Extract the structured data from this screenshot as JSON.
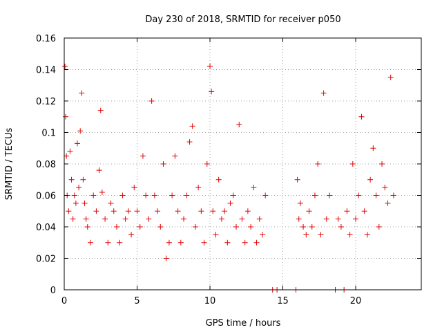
{
  "chart_data": {
    "type": "scatter",
    "title": "Day 230 of 2018, SRMTID for receiver p050",
    "xlabel": "GPS time / hours",
    "ylabel": "SRMTID / TECUs",
    "xlim": [
      0,
      24.5
    ],
    "ylim": [
      0,
      0.16
    ],
    "xticks": [
      0,
      5,
      10,
      15,
      20
    ],
    "xtick_labels": [
      "0",
      "5",
      "10",
      "15",
      "20"
    ],
    "yticks": [
      0,
      0.02,
      0.04,
      0.06,
      0.08,
      0.1,
      0.12,
      0.14,
      0.16
    ],
    "ytick_labels": [
      "0",
      "0.02",
      "0.04",
      "0.06",
      "0.08",
      "0.1",
      "0.12",
      "0.14",
      "0.16"
    ],
    "grid": true,
    "marker": "+",
    "series": [
      {
        "name": "SRMTID",
        "color": "#e00000",
        "x": [
          0.05,
          0.1,
          0.15,
          0.2,
          0.3,
          0.4,
          0.5,
          0.6,
          0.7,
          0.8,
          0.9,
          1.0,
          1.1,
          1.2,
          1.3,
          1.4,
          1.5,
          1.6,
          1.8,
          2.0,
          2.2,
          2.4,
          2.5,
          2.6,
          2.8,
          3.0,
          3.2,
          3.4,
          3.6,
          3.8,
          4.0,
          4.2,
          4.4,
          4.6,
          4.8,
          5.0,
          5.2,
          5.4,
          5.6,
          5.8,
          6.0,
          6.2,
          6.4,
          6.6,
          6.8,
          7.0,
          7.2,
          7.4,
          7.6,
          7.8,
          8.0,
          8.2,
          8.4,
          8.6,
          8.8,
          9.0,
          9.2,
          9.4,
          9.6,
          9.8,
          10.0,
          10.1,
          10.2,
          10.4,
          10.6,
          10.8,
          11.0,
          11.2,
          11.4,
          11.6,
          11.8,
          12.0,
          12.2,
          12.4,
          12.6,
          12.8,
          13.0,
          13.2,
          13.4,
          13.6,
          13.8,
          14.3,
          14.6,
          15.9,
          16.0,
          16.1,
          16.2,
          16.4,
          16.6,
          16.8,
          17.0,
          17.2,
          17.4,
          17.6,
          17.8,
          18.0,
          18.2,
          18.6,
          18.8,
          19.0,
          19.2,
          19.4,
          19.6,
          19.8,
          20.0,
          20.2,
          20.4,
          20.6,
          20.8,
          21.0,
          21.2,
          21.4,
          21.6,
          21.8,
          22.0,
          22.2,
          22.4,
          22.6
        ],
        "y": [
          0.142,
          0.11,
          0.085,
          0.06,
          0.05,
          0.088,
          0.07,
          0.045,
          0.06,
          0.055,
          0.093,
          0.065,
          0.101,
          0.125,
          0.07,
          0.055,
          0.045,
          0.04,
          0.03,
          0.06,
          0.05,
          0.076,
          0.114,
          0.062,
          0.045,
          0.03,
          0.055,
          0.05,
          0.04,
          0.03,
          0.06,
          0.045,
          0.05,
          0.035,
          0.065,
          0.05,
          0.04,
          0.085,
          0.06,
          0.045,
          0.12,
          0.06,
          0.05,
          0.04,
          0.08,
          0.02,
          0.03,
          0.06,
          0.085,
          0.05,
          0.03,
          0.045,
          0.06,
          0.094,
          0.104,
          0.04,
          0.065,
          0.05,
          0.03,
          0.08,
          0.142,
          0.126,
          0.05,
          0.035,
          0.07,
          0.045,
          0.05,
          0.03,
          0.055,
          0.06,
          0.04,
          0.105,
          0.045,
          0.03,
          0.05,
          0.04,
          0.065,
          0.03,
          0.045,
          0.035,
          0.06,
          0.0,
          0.0,
          0.0,
          0.07,
          0.045,
          0.055,
          0.04,
          0.035,
          0.05,
          0.04,
          0.06,
          0.08,
          0.035,
          0.125,
          0.045,
          0.06,
          0.0,
          0.045,
          0.04,
          0.0,
          0.05,
          0.035,
          0.08,
          0.045,
          0.06,
          0.11,
          0.05,
          0.035,
          0.07,
          0.09,
          0.06,
          0.04,
          0.08,
          0.065,
          0.055,
          0.135,
          0.06
        ]
      }
    ]
  }
}
